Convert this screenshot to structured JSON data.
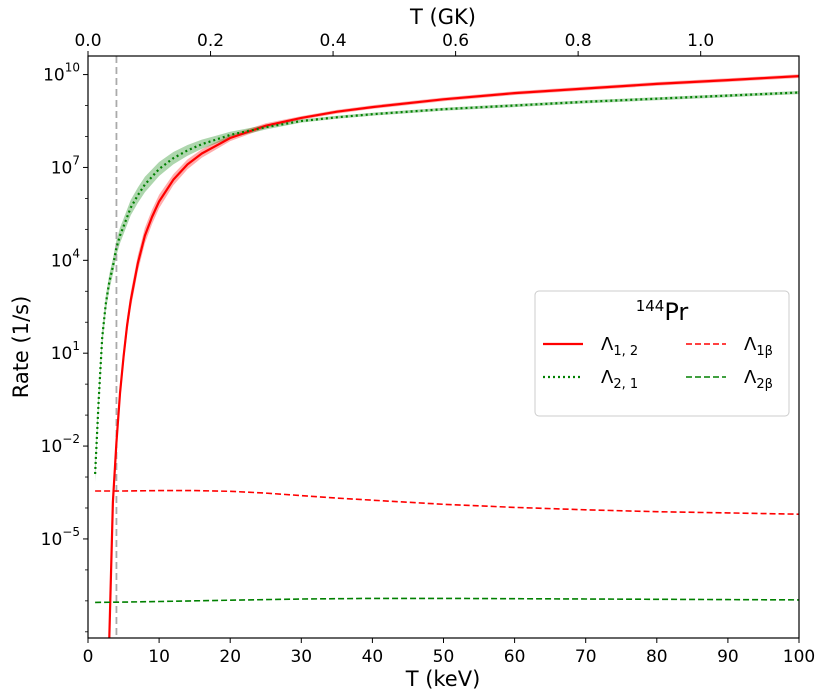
{
  "chart_data": {
    "type": "line",
    "title": "",
    "xlabel": "T (keV)",
    "ylabel": "Rate (1/s)",
    "x2label": "T (GK)",
    "xlim": [
      0,
      100
    ],
    "ylim_log10": [
      -8.2,
      10.6
    ],
    "yscale": "log",
    "xticks": [
      0,
      10,
      20,
      30,
      40,
      50,
      60,
      70,
      80,
      90,
      100
    ],
    "xticklabels": [
      "0",
      "10",
      "20",
      "30",
      "40",
      "50",
      "60",
      "70",
      "80",
      "90",
      "100"
    ],
    "x2ticks_gk": [
      0.0,
      0.2,
      0.4,
      0.6,
      0.8,
      1.0
    ],
    "x2ticklabels": [
      "0.0",
      "0.2",
      "0.4",
      "0.6",
      "0.8",
      "1.0"
    ],
    "keV_per_GK": 86.17,
    "yticks_log10": [
      -5,
      -2,
      1,
      4,
      7,
      10
    ],
    "ytick_base": "10",
    "ytick_exponents": [
      "−5",
      "−2",
      "1",
      "4",
      "7",
      "10"
    ],
    "vline": {
      "x": 4.0,
      "color": "#aaaaaa",
      "style": "dashed"
    },
    "legend": {
      "title_mass": "144",
      "title_element": "Pr",
      "location": "center-right",
      "entries": [
        {
          "series": "lambda12",
          "base": "Λ",
          "sub": "1, 2"
        },
        {
          "series": "lambda21",
          "base": "Λ",
          "sub": "2, 1"
        },
        {
          "series": "lambda1b",
          "base": "Λ",
          "sub": "1β"
        },
        {
          "series": "lambda2b",
          "base": "Λ",
          "sub": "2β"
        }
      ]
    },
    "series": [
      {
        "id": "lambda12",
        "name": "Λ1,2",
        "color": "#ff0000",
        "style": "solid",
        "band_log10_halfwidth": [
          0.3,
          0.25,
          0.18,
          0.1,
          0.06
        ],
        "band_x": [
          3,
          8,
          12,
          20,
          30
        ],
        "x": [
          3.0,
          3.5,
          4.0,
          4.5,
          5,
          5.5,
          6,
          7,
          8,
          9,
          10,
          12,
          14,
          16,
          18,
          20,
          25,
          30,
          35,
          40,
          50,
          60,
          70,
          80,
          90,
          100
        ],
        "log10_y": [
          -8.2,
          -3.8,
          -1.9,
          -0.3,
          0.9,
          1.9,
          2.7,
          3.9,
          4.8,
          5.4,
          5.9,
          6.6,
          7.1,
          7.45,
          7.7,
          7.95,
          8.35,
          8.6,
          8.8,
          8.95,
          9.2,
          9.4,
          9.55,
          9.7,
          9.82,
          9.95
        ]
      },
      {
        "id": "lambda21",
        "name": "Λ2,1",
        "color": "#008000",
        "style": "dotted",
        "band_log10_halfwidth": [
          0.25,
          0.25,
          0.2,
          0.1,
          0.05
        ],
        "band_x": [
          3,
          8,
          12,
          20,
          30
        ],
        "x": [
          1,
          1.5,
          2,
          2.5,
          3,
          3.5,
          4,
          4.5,
          5,
          6,
          7,
          8,
          10,
          12,
          14,
          16,
          18,
          20,
          25,
          30,
          35,
          40,
          50,
          60,
          70,
          80,
          90,
          100
        ],
        "log10_y": [
          -2.9,
          -0.5,
          1.5,
          2.6,
          3.3,
          3.8,
          4.4,
          4.8,
          5.1,
          5.7,
          6.1,
          6.45,
          6.95,
          7.3,
          7.55,
          7.75,
          7.9,
          8.05,
          8.3,
          8.5,
          8.62,
          8.72,
          8.88,
          9.0,
          9.12,
          9.22,
          9.32,
          9.42
        ]
      },
      {
        "id": "lambda1b",
        "name": "Λ1β",
        "color": "#ff0000",
        "style": "dashed",
        "x": [
          1,
          5,
          10,
          15,
          20,
          25,
          30,
          35,
          40,
          50,
          60,
          70,
          80,
          90,
          100
        ],
        "log10_y": [
          -3.45,
          -3.45,
          -3.44,
          -3.44,
          -3.46,
          -3.52,
          -3.6,
          -3.68,
          -3.75,
          -3.88,
          -3.98,
          -4.06,
          -4.12,
          -4.16,
          -4.2
        ]
      },
      {
        "id": "lambda2b",
        "name": "Λ2β",
        "color": "#008000",
        "style": "dashed",
        "x": [
          1,
          5,
          10,
          20,
          30,
          40,
          50,
          60,
          70,
          80,
          90,
          100
        ],
        "log10_y": [
          -7.05,
          -7.04,
          -7.02,
          -6.98,
          -6.94,
          -6.92,
          -6.92,
          -6.93,
          -6.94,
          -6.95,
          -6.96,
          -6.97
        ]
      }
    ]
  }
}
